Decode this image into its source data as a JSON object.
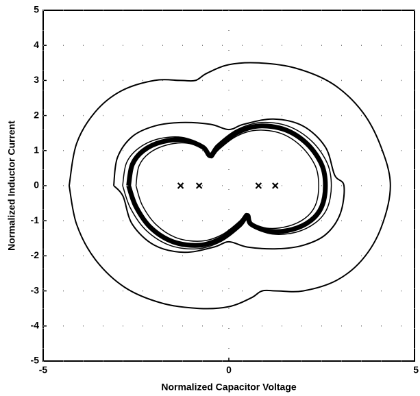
{
  "chart_data": {
    "type": "line",
    "xlabel": "Normalized Capacitor Voltage",
    "ylabel": "Normalized Inductor Current",
    "xlim": [
      -5,
      5
    ],
    "xticks": [
      -5,
      0,
      5
    ],
    "ylim": [
      -5,
      5
    ],
    "yticks": [
      -5,
      -4,
      -3,
      -2,
      -1,
      0,
      1,
      2,
      3,
      4,
      5
    ],
    "grid": true,
    "grid_style": "dotted",
    "series": [
      {
        "color": "#000000",
        "width": 2,
        "x": [
          -4.3,
          -4.1,
          -3.6,
          -2.9,
          -2.0,
          -1.3,
          -0.9,
          -0.6,
          0,
          0.8,
          1.8,
          2.8,
          3.6,
          4.1,
          4.35,
          4.1,
          3.6,
          2.9,
          2.0,
          1.3,
          0.9,
          0.6,
          0,
          -0.8,
          -1.8,
          -2.8,
          -3.6,
          -4.1,
          -4.3
        ],
        "values": [
          0,
          1.2,
          2.1,
          2.7,
          3.0,
          3.0,
          3.0,
          3.2,
          3.45,
          3.5,
          3.35,
          2.9,
          2.1,
          1.1,
          0,
          -1.2,
          -2.1,
          -2.7,
          -3.0,
          -3.0,
          -3.0,
          -3.2,
          -3.45,
          -3.5,
          -3.35,
          -2.9,
          -2.1,
          -1.1,
          0
        ]
      },
      {
        "color": "#000000",
        "width": 2,
        "x": [
          -3.1,
          -3.0,
          -2.6,
          -2.0,
          -1.3,
          -0.5,
          0,
          0.4,
          1.2,
          2.0,
          2.6,
          2.85,
          3.1,
          3.0,
          2.6,
          2.0,
          1.3,
          0.5,
          0,
          -0.4,
          -1.2,
          -2.0,
          -2.6,
          -2.85,
          -3.1
        ],
        "values": [
          0,
          0.8,
          1.4,
          1.7,
          1.8,
          1.75,
          1.6,
          1.75,
          1.9,
          1.7,
          1.1,
          0.3,
          0,
          -0.8,
          -1.4,
          -1.7,
          -1.8,
          -1.75,
          -1.6,
          -1.75,
          -1.9,
          -1.7,
          -1.1,
          -0.3,
          0
        ]
      },
      {
        "color": "#000000",
        "width": 1.5,
        "x": [
          -2.86,
          -2.76,
          -2.44,
          -1.91,
          -1.27,
          -0.74,
          -0.53,
          -0.32,
          0.21,
          0.85,
          1.59,
          2.23,
          2.65,
          2.76,
          2.65,
          2.33,
          1.8,
          1.17,
          0.64,
          0.53,
          0.32,
          -0.21,
          -0.85,
          -1.59,
          -2.23,
          -2.65,
          -2.86
        ],
        "values": [
          0,
          0.64,
          1.06,
          1.33,
          1.38,
          1.17,
          0.9,
          1.17,
          1.59,
          1.8,
          1.7,
          1.27,
          0.64,
          0,
          -0.64,
          -1.06,
          -1.33,
          -1.38,
          -1.17,
          -0.9,
          -1.17,
          -1.59,
          -1.8,
          -1.7,
          -1.27,
          -0.64,
          0
        ]
      },
      {
        "color": "#000000",
        "width": 7,
        "x": [
          -2.7,
          -2.6,
          -2.3,
          -1.8,
          -1.2,
          -0.7,
          -0.5,
          -0.3,
          0.2,
          0.8,
          1.5,
          2.1,
          2.5,
          2.6,
          2.5,
          2.2,
          1.7,
          1.1,
          0.6,
          0.5,
          0.3,
          -0.2,
          -0.8,
          -1.5,
          -2.1,
          -2.5,
          -2.7
        ],
        "values": [
          0,
          0.6,
          1.0,
          1.25,
          1.3,
          1.1,
          0.85,
          1.1,
          1.5,
          1.7,
          1.6,
          1.2,
          0.6,
          0,
          -0.6,
          -1.0,
          -1.25,
          -1.3,
          -1.1,
          -0.85,
          -1.1,
          -1.5,
          -1.7,
          -1.6,
          -1.2,
          -0.6,
          0
        ]
      },
      {
        "color": "#000000",
        "width": 1.5,
        "x": [
          -2.5,
          -2.42,
          -2.14,
          -1.67,
          -1.12,
          -0.65,
          -0.47,
          -0.28,
          0.19,
          0.74,
          1.4,
          1.95,
          2.33,
          2.42,
          2.33,
          2.05,
          1.58,
          1.02,
          0.56,
          0.47,
          0.28,
          -0.19,
          -0.74,
          -1.4,
          -1.95,
          -2.33,
          -2.5
        ],
        "values": [
          0,
          0.56,
          0.93,
          1.16,
          1.21,
          1.02,
          0.79,
          1.02,
          1.4,
          1.58,
          1.49,
          1.12,
          0.56,
          0,
          -0.56,
          -0.93,
          -1.16,
          -1.21,
          -1.02,
          -0.79,
          -1.02,
          -1.4,
          -1.58,
          -1.49,
          -1.12,
          -0.56,
          0
        ]
      }
    ],
    "markers": {
      "color": "#000000",
      "x": [
        -1.3,
        -0.8,
        0.8,
        1.25
      ],
      "values": [
        0,
        0,
        0,
        0
      ]
    }
  }
}
